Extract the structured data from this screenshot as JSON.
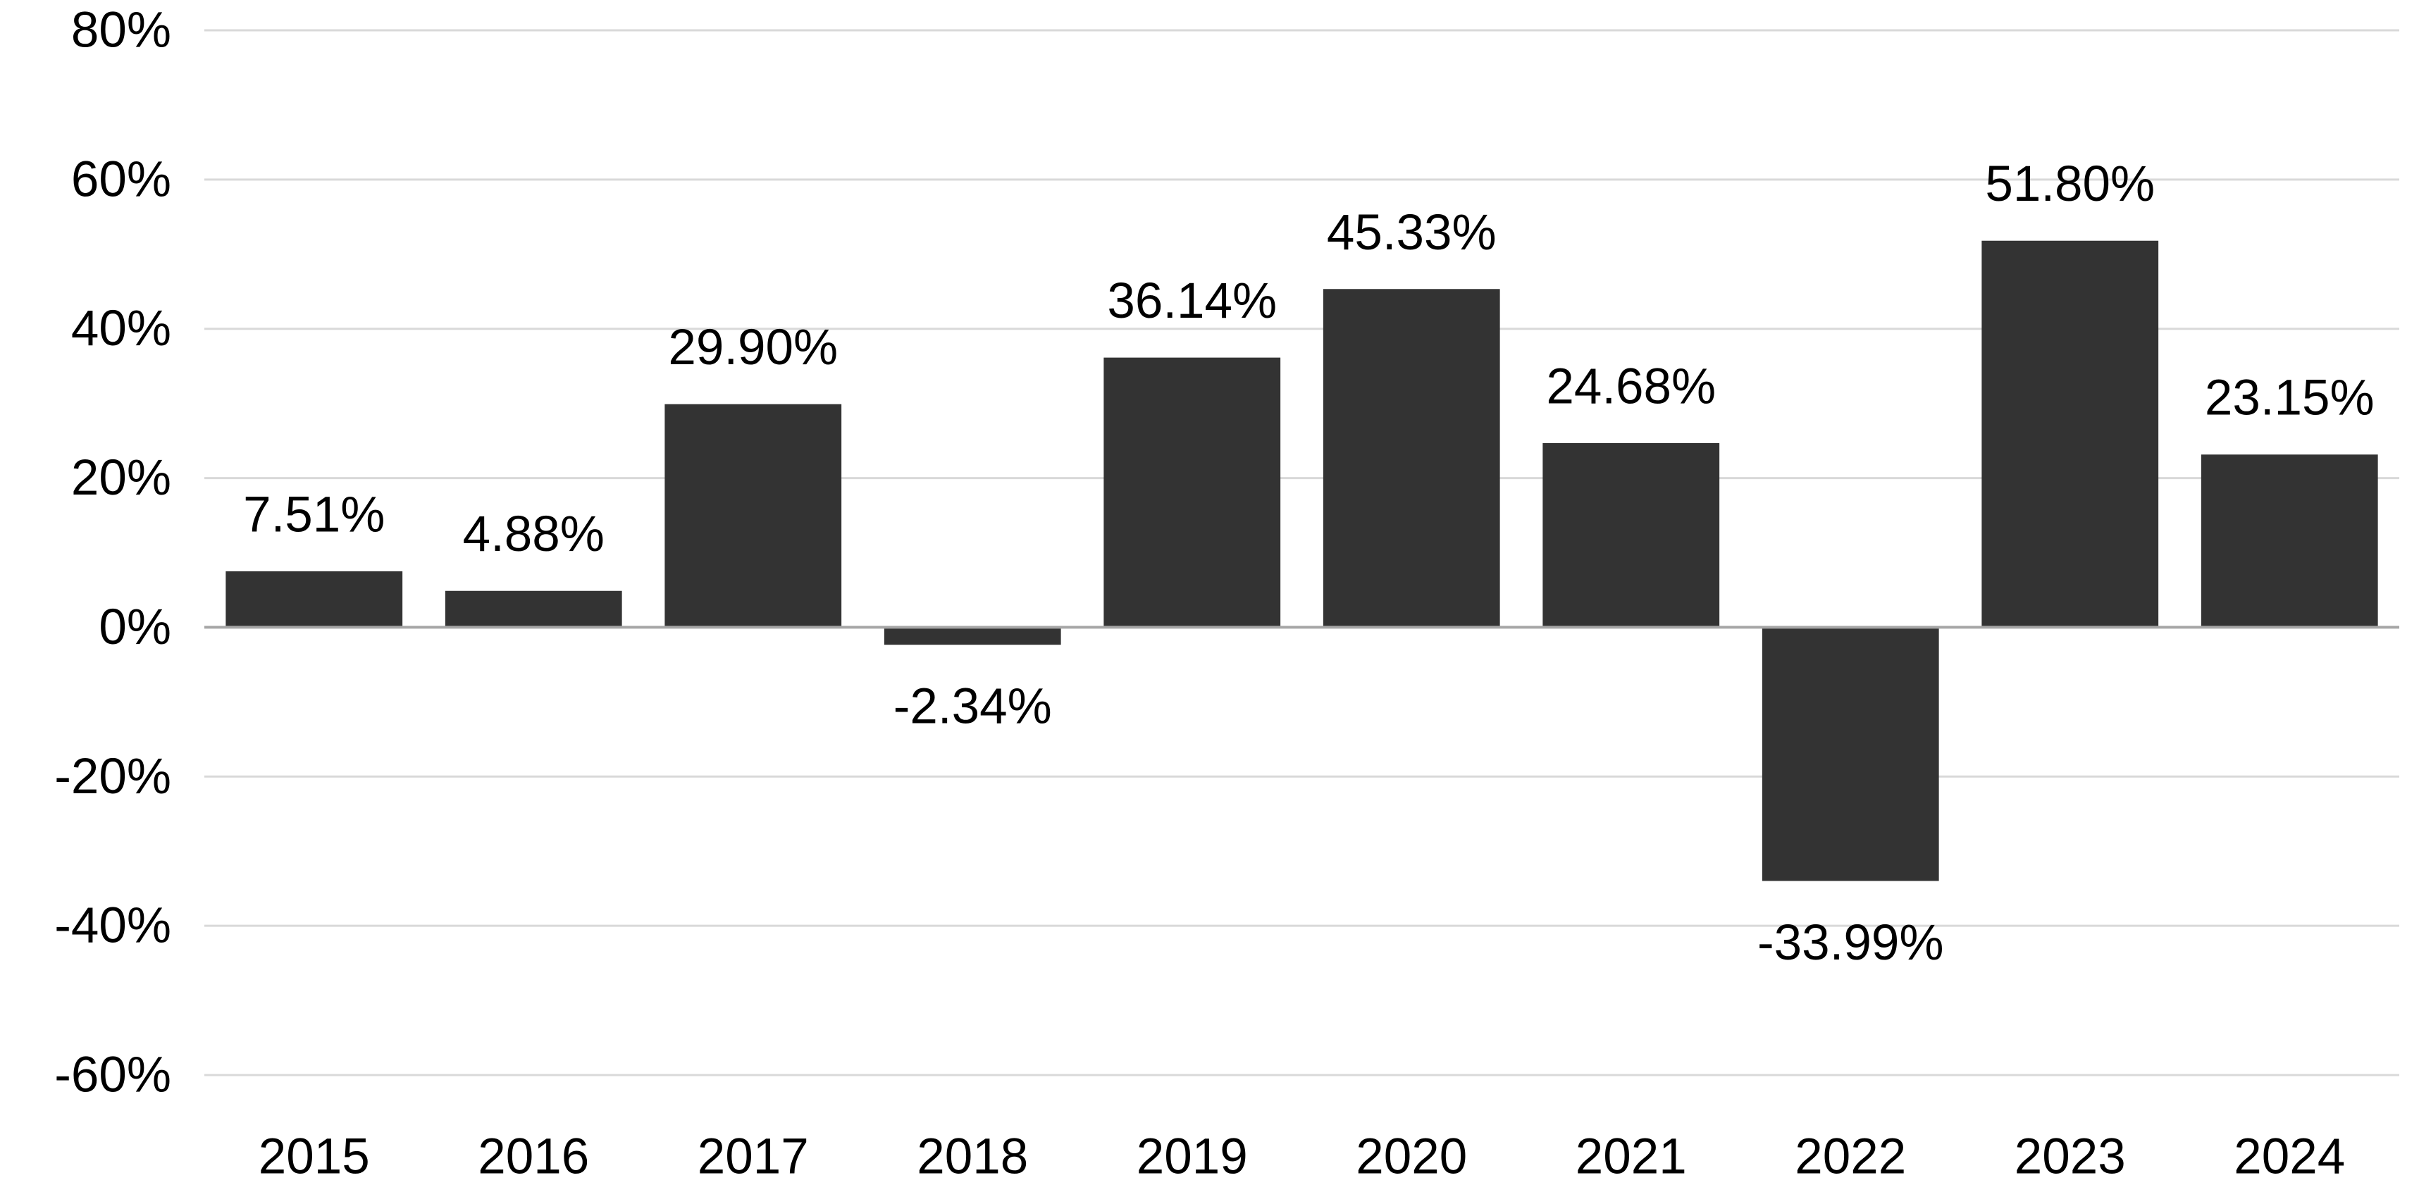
{
  "chart_data": {
    "type": "bar",
    "title": "",
    "xlabel": "",
    "ylabel": "",
    "categories": [
      "2015",
      "2016",
      "2017",
      "2018",
      "2019",
      "2020",
      "2021",
      "2022",
      "2023",
      "2024"
    ],
    "values": [
      7.51,
      4.88,
      29.9,
      -2.34,
      36.14,
      45.33,
      24.68,
      -33.99,
      51.8,
      23.15
    ],
    "data_labels": [
      "7.51%",
      "4.88%",
      "29.90%",
      "-2.34%",
      "36.14%",
      "45.33%",
      "24.68%",
      "-33.99%",
      "51.80%",
      "23.15%"
    ],
    "ylim": [
      -60,
      80
    ],
    "y_ticks": [
      80,
      60,
      40,
      20,
      0,
      -20,
      -40,
      -60
    ],
    "y_tick_labels": [
      "80%",
      "60%",
      "40%",
      "20%",
      "0%",
      "-20%",
      "-40%",
      "-60%"
    ],
    "grid": true,
    "legend": "none",
    "colors": {
      "bar": "#333333",
      "grid": "#d9d9d9",
      "zero_line": "#a6a6a6",
      "text": "#000000"
    }
  }
}
